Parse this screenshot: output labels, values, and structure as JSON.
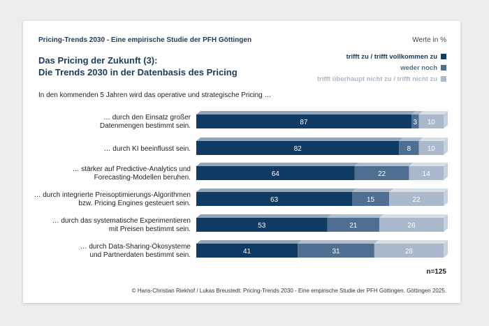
{
  "header": "Pricing-Trends 2030 - Eine empirische Studie der PFH Göttingen",
  "units_label": "Werte in %",
  "title_line1": "Das Pricing der Zukunft (3):",
  "title_line2": "Die Trends 2030 in der Datenbasis des Pricing",
  "intro": "In den kommenden 5 Jahren wird das operative und strategische Pricing …",
  "sample_size": "n=125",
  "source": "© Hans-Christian Riekhof / Lukas Breustedt: Pricing-Trends 2030 - Eine empirische Studie der PFH Göttingen. Göttingen 2025.",
  "colors": {
    "dark": "#0f3a63",
    "mid": "#4f6f92",
    "light": "#a9b8ca"
  },
  "chart_data": {
    "type": "bar",
    "orientation": "horizontal",
    "stacked": true,
    "xlim": [
      0,
      100
    ],
    "categories": [
      [
        "… durch den Einsatz großer",
        "Datenmengen bestimmt sein."
      ],
      [
        "… durch KI beeinflusst sein."
      ],
      [
        "… stärker auf Predictive-Analytics und",
        "Forecasting-Modellen beruhen."
      ],
      [
        "… durch integrierte Preisoptimierungs-Algorithmen",
        "bzw. Pricing Engines gesteuert sein."
      ],
      [
        "… durch das systematische Experimentieren",
        "mit Preisen bestimmt sein."
      ],
      [
        "… durch Data-Sharing-Ökosysteme",
        "und Partnerdaten bestimmt sein."
      ]
    ],
    "series": [
      {
        "name": "trifft zu / trifft vollkommen zu",
        "color": "#0f3a63",
        "values": [
          87,
          82,
          64,
          63,
          53,
          41
        ]
      },
      {
        "name": "weder noch",
        "color": "#4f6f92",
        "values": [
          3,
          8,
          22,
          15,
          21,
          31
        ]
      },
      {
        "name": "trifft überhaupt nicht zu / trifft nicht zu",
        "color": "#a9b8ca",
        "values": [
          10,
          10,
          14,
          22,
          26,
          28
        ]
      }
    ],
    "legend_position": "top-right"
  }
}
